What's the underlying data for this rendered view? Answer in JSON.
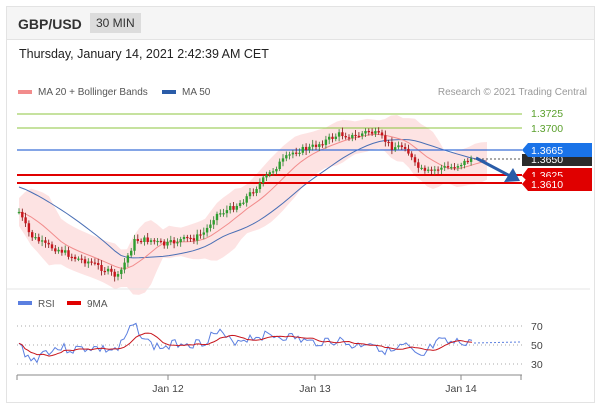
{
  "header": {
    "symbol": "GBP/USD",
    "timeframe": "30 MIN"
  },
  "datetime": "Thursday, January 14, 2021 2:42:39 AM CET",
  "legend": {
    "ma20": "MA 20 + Bollinger Bands",
    "ma50": "MA 50",
    "credit": "Research © 2021 Trading Central"
  },
  "levels": {
    "r2": "1.3725",
    "r1": "1.3700",
    "price": "1.3665",
    "ma_label": "1.3650",
    "s1": "1.3625",
    "s2": "1.3610"
  },
  "rsi": {
    "rsi_label": "RSI",
    "ma_label": "9MA",
    "ticks": [
      "70",
      "50",
      "30"
    ]
  },
  "xaxis": [
    "Jan 12",
    "Jan 13",
    "Jan 14"
  ],
  "colors": {
    "up": "#2f9e2f",
    "down": "#c8161d",
    "ma20": "#f28c8c",
    "ma50": "#4a6fb5",
    "resist": "#8cc63f",
    "support": "#e00000",
    "price": "#1a73e8",
    "arrow": "#2a5ca8"
  }
}
